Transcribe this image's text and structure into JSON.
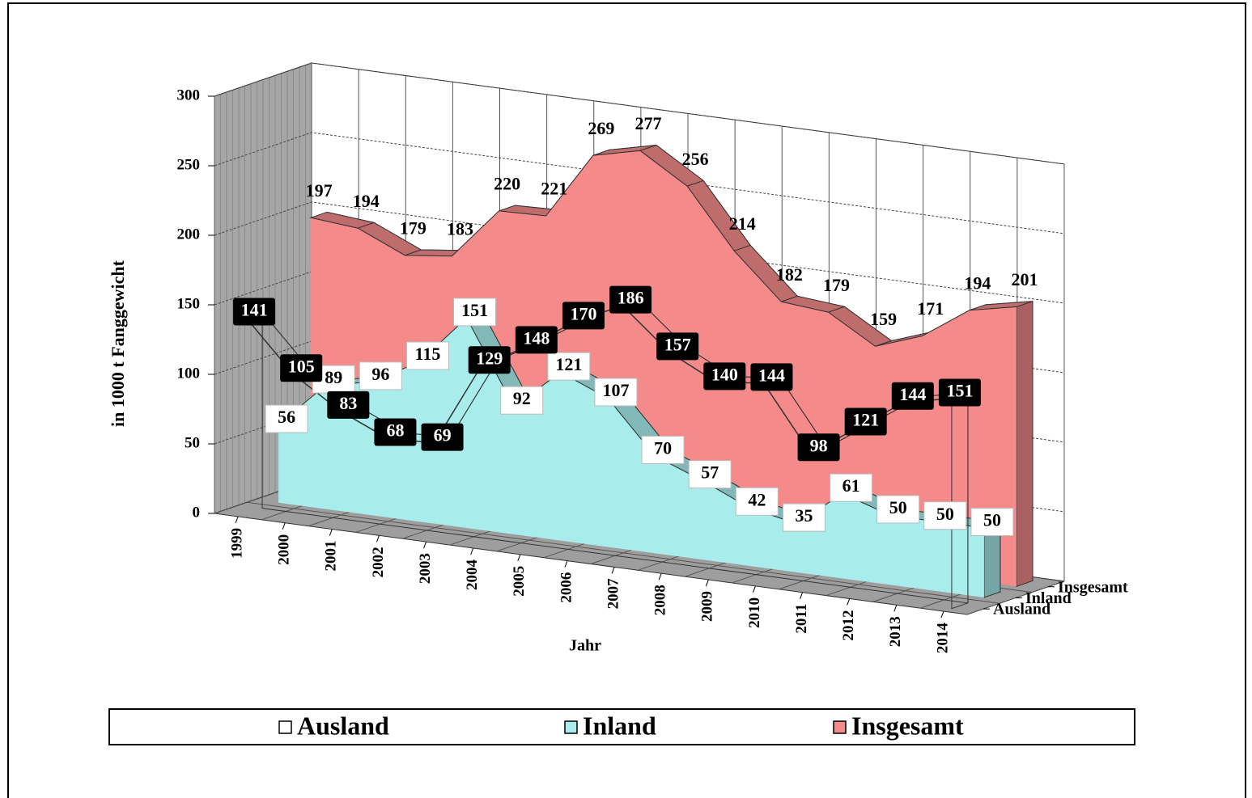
{
  "chart_data": {
    "type": "area3d",
    "ylabel": "in 1000 t  Fanggewicht",
    "xlabel": "Jahr",
    "categories": [
      "1999",
      "2000",
      "2001",
      "2002",
      "2003",
      "2004",
      "2005",
      "2006",
      "2007",
      "2008",
      "2009",
      "2010",
      "2011",
      "2012",
      "2013",
      "2014"
    ],
    "ylim": [
      0,
      300
    ],
    "yticks": [
      0,
      50,
      100,
      150,
      200,
      250,
      300
    ],
    "grid": true,
    "series": [
      {
        "name": "Ausland",
        "color": "#ffffff",
        "values": [
          141,
          105,
          83,
          68,
          69,
          129,
          148,
          170,
          186,
          157,
          140,
          144,
          98,
          121,
          144,
          151
        ]
      },
      {
        "name": "Inland",
        "color": "#a8ecec",
        "values": [
          56,
          89,
          96,
          115,
          151,
          92,
          121,
          107,
          70,
          57,
          42,
          35,
          61,
          50,
          50,
          50
        ]
      },
      {
        "name": "Insgesamt",
        "color": "#f48a8a",
        "values": [
          197,
          194,
          179,
          183,
          220,
          221,
          269,
          277,
          256,
          214,
          182,
          179,
          159,
          171,
          194,
          201
        ]
      }
    ]
  }
}
